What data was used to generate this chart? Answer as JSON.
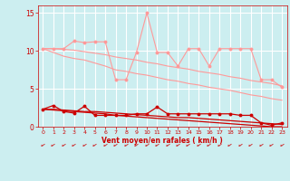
{
  "x": [
    0,
    1,
    2,
    3,
    4,
    5,
    6,
    7,
    8,
    9,
    10,
    11,
    12,
    13,
    14,
    15,
    16,
    17,
    18,
    19,
    20,
    21,
    22,
    23
  ],
  "line_pink_zigzag": [
    10.3,
    10.3,
    10.3,
    11.3,
    11.1,
    11.2,
    11.2,
    6.2,
    6.2,
    9.8,
    15.0,
    9.8,
    9.8,
    8.0,
    10.3,
    10.3,
    8.0,
    10.3,
    10.3,
    10.3,
    10.3,
    6.2,
    6.2,
    5.2
  ],
  "line_pink_upper": [
    10.3,
    10.3,
    10.2,
    10.1,
    9.9,
    9.7,
    9.5,
    9.2,
    9.0,
    8.8,
    8.5,
    8.3,
    8.0,
    7.8,
    7.6,
    7.3,
    7.1,
    6.9,
    6.6,
    6.4,
    6.1,
    5.9,
    5.7,
    5.4
  ],
  "line_pink_lower": [
    10.3,
    9.8,
    9.3,
    9.0,
    8.8,
    8.4,
    8.0,
    7.5,
    7.3,
    7.0,
    6.8,
    6.5,
    6.2,
    6.0,
    5.7,
    5.5,
    5.2,
    5.0,
    4.8,
    4.5,
    4.2,
    4.0,
    3.7,
    3.5
  ],
  "line_red_zigzag": [
    2.3,
    2.8,
    2.0,
    1.8,
    2.7,
    1.5,
    1.5,
    1.5,
    1.5,
    1.7,
    1.7,
    2.6,
    1.7,
    1.7,
    1.7,
    1.7,
    1.7,
    1.7,
    1.7,
    1.5,
    1.5,
    0.5,
    0.2,
    0.5
  ],
  "line_red_upper": [
    2.3,
    2.3,
    2.2,
    2.1,
    2.0,
    2.0,
    1.9,
    1.8,
    1.7,
    1.6,
    1.5,
    1.4,
    1.3,
    1.2,
    1.2,
    1.1,
    1.0,
    0.9,
    0.8,
    0.7,
    0.6,
    0.5,
    0.4,
    0.3
  ],
  "line_red_lower": [
    2.3,
    2.2,
    2.1,
    2.0,
    1.9,
    1.8,
    1.7,
    1.5,
    1.4,
    1.3,
    1.2,
    1.1,
    1.0,
    0.9,
    0.8,
    0.7,
    0.6,
    0.5,
    0.4,
    0.3,
    0.2,
    0.1,
    0.0,
    0.0
  ],
  "bg_color": "#cceef0",
  "grid_color": "#ffffff",
  "pink_color": "#ff9999",
  "red_color": "#cc0000",
  "xlabel": "Vent moyen/en rafales ( km/h )",
  "ylim": [
    0,
    16
  ],
  "yticks": [
    0,
    5,
    10,
    15
  ],
  "xticks": [
    0,
    1,
    2,
    3,
    4,
    5,
    6,
    7,
    8,
    9,
    10,
    11,
    12,
    13,
    14,
    15,
    16,
    17,
    18,
    19,
    20,
    21,
    22,
    23
  ]
}
